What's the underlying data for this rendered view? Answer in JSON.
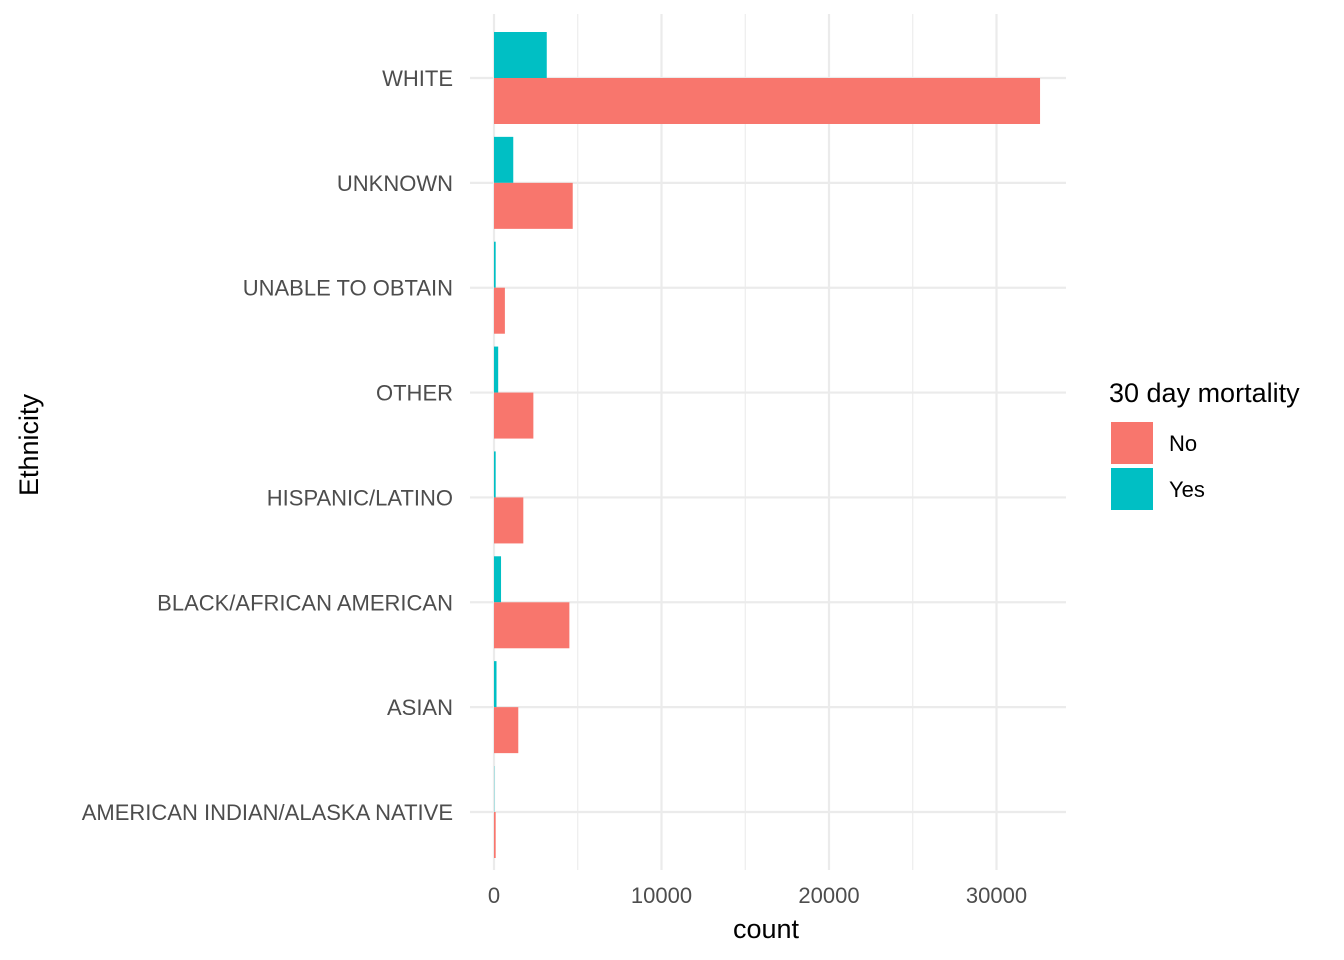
{
  "chart_data": {
    "type": "bar",
    "orientation": "horizontal",
    "xlabel": "count",
    "ylabel": "Ethnicity",
    "xlim": [
      0,
      34000
    ],
    "x_ticks": [
      0,
      10000,
      20000,
      30000
    ],
    "x_tick_labels": [
      "0",
      "10000",
      "20000",
      "30000"
    ],
    "grid": true,
    "legend_position": "right",
    "legend_title": "30 day mortality",
    "categories": [
      "WHITE",
      "UNKNOWN",
      "UNABLE TO OBTAIN",
      "OTHER",
      "HISPANIC/LATINO",
      "BLACK/AFRICAN AMERICAN",
      "ASIAN",
      "AMERICAN INDIAN/ALASKA NATIVE"
    ],
    "series": [
      {
        "name": "No",
        "color": "#F8766D",
        "values": [
          32600,
          4700,
          650,
          2350,
          1750,
          4500,
          1450,
          100
        ]
      },
      {
        "name": "Yes",
        "color": "#00BFC4",
        "values": [
          3150,
          1150,
          100,
          250,
          100,
          420,
          150,
          15
        ]
      }
    ]
  }
}
